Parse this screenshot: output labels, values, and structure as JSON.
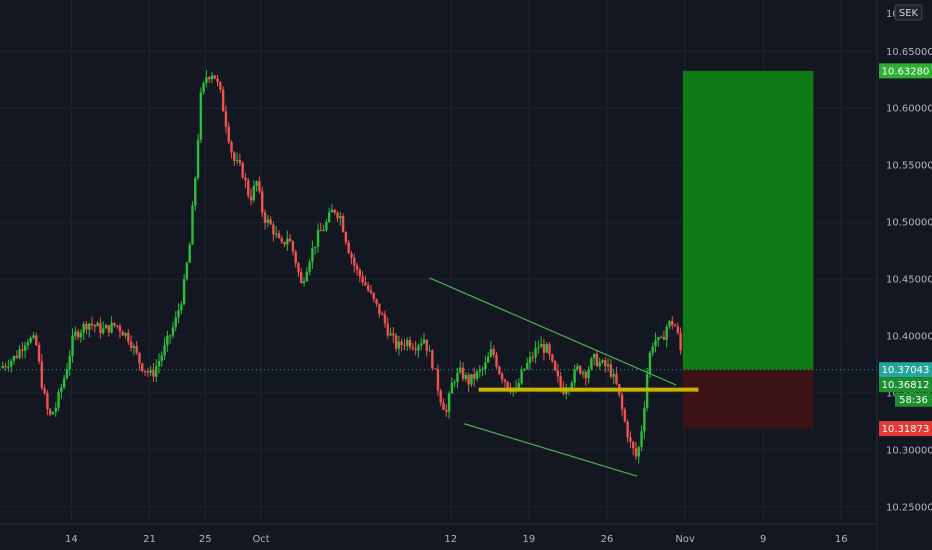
{
  "currency": "SEK",
  "price_labels": {
    "target": "10.63280",
    "current": "10.37043",
    "current_close": "10.36812",
    "countdown": "58:36",
    "stop": "10.31873",
    "top_cut": "10.6"
  },
  "colors": {
    "background": "#131722",
    "up_candle": "#26a69a",
    "up_candle_bright": "#2ebd3a",
    "down_candle": "#ef5350",
    "trendline": "#4caf50",
    "support": "#c8b400",
    "profit_zone": "#0e7a13",
    "loss_zone": "#3d1217",
    "axis_text": "#b2b5be"
  },
  "chart_data": {
    "type": "candlestick",
    "y_ticks": [
      "10.65000",
      "10.60000",
      "10.55000",
      "10.50000",
      "10.45000",
      "10.40000",
      "10.35000",
      "10.30000",
      "10.25000"
    ],
    "y_tick_values": [
      10.65,
      10.6,
      10.55,
      10.5,
      10.45,
      10.4,
      10.35,
      10.3,
      10.25
    ],
    "ylim": [
      10.235,
      10.695
    ],
    "x_ticks": [
      "14",
      "21",
      "25",
      "Oct",
      "12",
      "19",
      "26",
      "Nov",
      "9",
      "16"
    ],
    "x_tick_days": [
      14,
      21,
      26,
      31,
      48,
      55,
      62,
      69,
      76,
      83
    ],
    "xlim": [
      7.6,
      86.2
    ],
    "current_price": 10.37043,
    "position": {
      "entry": 10.37043,
      "target": 10.6328,
      "stop": 10.31873,
      "start_day": 68.8,
      "end_day": 80.5
    },
    "support_level": {
      "price": 10.353,
      "from_day": 50.5,
      "to_day": 70.2
    },
    "channel": {
      "upper": [
        [
          46.1,
          10.451
        ],
        [
          68.2,
          10.357
        ]
      ],
      "lower": [
        [
          49.2,
          10.323
        ],
        [
          64.7,
          10.277
        ]
      ]
    },
    "price_path": [
      [
        7.6,
        10.372
      ],
      [
        9.0,
        10.382
      ],
      [
        10.0,
        10.398
      ],
      [
        10.8,
        10.395
      ],
      [
        11.4,
        10.355
      ],
      [
        12.0,
        10.328
      ],
      [
        12.6,
        10.338
      ],
      [
        13.4,
        10.365
      ],
      [
        14.2,
        10.4
      ],
      [
        15.5,
        10.412
      ],
      [
        16.8,
        10.405
      ],
      [
        18.0,
        10.41
      ],
      [
        19.2,
        10.398
      ],
      [
        20.2,
        10.375
      ],
      [
        21.2,
        10.365
      ],
      [
        22.3,
        10.388
      ],
      [
        23.3,
        10.412
      ],
      [
        24.0,
        10.438
      ],
      [
        24.6,
        10.48
      ],
      [
        25.1,
        10.54
      ],
      [
        25.6,
        10.61
      ],
      [
        26.1,
        10.628
      ],
      [
        26.7,
        10.632
      ],
      [
        27.3,
        10.615
      ],
      [
        27.9,
        10.585
      ],
      [
        28.5,
        10.555
      ],
      [
        29.3,
        10.545
      ],
      [
        30.0,
        10.52
      ],
      [
        30.6,
        10.535
      ],
      [
        31.2,
        10.505
      ],
      [
        32.0,
        10.495
      ],
      [
        32.8,
        10.478
      ],
      [
        33.4,
        10.488
      ],
      [
        34.0,
        10.47
      ],
      [
        34.6,
        10.445
      ],
      [
        35.3,
        10.468
      ],
      [
        36.1,
        10.488
      ],
      [
        36.8,
        10.498
      ],
      [
        37.5,
        10.512
      ],
      [
        38.1,
        10.505
      ],
      [
        38.8,
        10.478
      ],
      [
        39.5,
        10.458
      ],
      [
        40.2,
        10.448
      ],
      [
        41.0,
        10.432
      ],
      [
        41.8,
        10.418
      ],
      [
        42.5,
        10.402
      ],
      [
        43.2,
        10.39
      ],
      [
        44.0,
        10.396
      ],
      [
        44.8,
        10.392
      ],
      [
        45.6,
        10.398
      ],
      [
        46.4,
        10.375
      ],
      [
        47.0,
        10.348
      ],
      [
        47.6,
        10.333
      ],
      [
        48.2,
        10.362
      ],
      [
        48.9,
        10.368
      ],
      [
        49.6,
        10.36
      ],
      [
        50.3,
        10.366
      ],
      [
        51.0,
        10.372
      ],
      [
        51.7,
        10.388
      ],
      [
        52.4,
        10.368
      ],
      [
        53.1,
        10.358
      ],
      [
        53.8,
        10.35
      ],
      [
        54.5,
        10.37
      ],
      [
        55.2,
        10.38
      ],
      [
        55.9,
        10.392
      ],
      [
        56.6,
        10.388
      ],
      [
        57.3,
        10.368
      ],
      [
        58.0,
        10.352
      ],
      [
        58.7,
        10.36
      ],
      [
        59.4,
        10.372
      ],
      [
        60.1,
        10.368
      ],
      [
        60.8,
        10.38
      ],
      [
        61.5,
        10.375
      ],
      [
        62.2,
        10.372
      ],
      [
        62.9,
        10.355
      ],
      [
        63.5,
        10.328
      ],
      [
        64.1,
        10.305
      ],
      [
        64.7,
        10.292
      ],
      [
        65.2,
        10.325
      ],
      [
        65.7,
        10.378
      ],
      [
        66.2,
        10.398
      ],
      [
        66.8,
        10.393
      ],
      [
        67.4,
        10.41
      ],
      [
        68.0,
        10.412
      ],
      [
        68.5,
        10.395
      ],
      [
        68.8,
        10.371
      ]
    ]
  }
}
